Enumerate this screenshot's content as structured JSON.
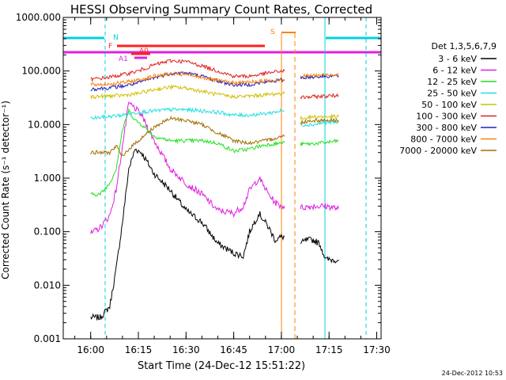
{
  "chart_data": {
    "type": "line",
    "title": "HESSI Observing Summary Count Rates, Corrected",
    "xlabel": "Start Time (24-Dec-12 15:51:22)",
    "ylabel": "Corrected Count Rate (s⁻¹ detector⁻¹)",
    "y_scale": "log",
    "ylim": [
      0.001,
      1000
    ],
    "xlim": [
      "15:51:22",
      "17:31:22"
    ],
    "x_ticks": [
      "16:00",
      "16:15",
      "16:30",
      "16:45",
      "17:00",
      "17:15",
      "17:30"
    ],
    "y_ticks": [
      "1000.000",
      "100.000",
      "10.000",
      "1.000",
      "0.100",
      "0.010",
      "0.001"
    ],
    "legend_title": "Det 1,3,5,6,7,9",
    "legend_position": "right",
    "timestamp": "24-Dec-2012 10:53",
    "flags": {
      "N": {
        "label": "N",
        "color": "#00d0e0"
      },
      "F": {
        "label": "F",
        "color": "#ff2020"
      },
      "A0": {
        "label": "A0",
        "color": "#ff2020"
      },
      "A1": {
        "label": "A1",
        "color": "#e020e0"
      },
      "S": {
        "label": "S",
        "color": "#ff8000"
      }
    },
    "series": [
      {
        "name": "3 - 6 keV",
        "color": "#000000",
        "points": [
          [
            "16:00",
            0.0025
          ],
          [
            "16:03",
            0.0025
          ],
          [
            "16:06",
            0.004
          ],
          [
            "16:08",
            0.02
          ],
          [
            "16:10",
            0.15
          ],
          [
            "16:12",
            1.5
          ],
          [
            "16:14",
            3.5
          ],
          [
            "16:16",
            3.0
          ],
          [
            "16:20",
            1.2
          ],
          [
            "16:25",
            0.6
          ],
          [
            "16:30",
            0.25
          ],
          [
            "16:35",
            0.15
          ],
          [
            "16:40",
            0.06
          ],
          [
            "16:45",
            0.04
          ],
          [
            "16:48",
            0.035
          ],
          [
            "16:50",
            0.1
          ],
          [
            "16:53",
            0.22
          ],
          [
            "16:56",
            0.12
          ],
          [
            "16:58",
            0.07
          ],
          [
            "17:00",
            0.08
          ],
          [
            "17:01",
            0.08
          ]
        ],
        "points_b": [
          [
            "17:06",
            0.06
          ],
          [
            "17:08",
            0.07
          ],
          [
            "17:10",
            0.07
          ],
          [
            "17:12",
            0.06
          ],
          [
            "17:14",
            0.03
          ],
          [
            "17:16",
            0.03
          ],
          [
            "17:18",
            0.03
          ]
        ]
      },
      {
        "name": "6 - 12 keV",
        "color": "#e020e0",
        "points": [
          [
            "16:00",
            0.09
          ],
          [
            "16:03",
            0.12
          ],
          [
            "16:06",
            0.2
          ],
          [
            "16:08",
            0.6
          ],
          [
            "16:10",
            4
          ],
          [
            "16:12",
            25
          ],
          [
            "16:14",
            20
          ],
          [
            "16:16",
            15
          ],
          [
            "16:20",
            5
          ],
          [
            "16:25",
            1.5
          ],
          [
            "16:30",
            0.8
          ],
          [
            "16:35",
            0.5
          ],
          [
            "16:40",
            0.25
          ],
          [
            "16:45",
            0.22
          ],
          [
            "16:48",
            0.3
          ],
          [
            "16:50",
            0.6
          ],
          [
            "16:53",
            1.0
          ],
          [
            "16:56",
            0.5
          ],
          [
            "16:58",
            0.35
          ],
          [
            "17:00",
            0.3
          ],
          [
            "17:01",
            0.3
          ]
        ],
        "points_b": [
          [
            "17:06",
            0.28
          ],
          [
            "17:10",
            0.3
          ],
          [
            "17:14",
            0.3
          ],
          [
            "17:18",
            0.27
          ]
        ]
      },
      {
        "name": "12 - 25 keV",
        "color": "#20e020",
        "points": [
          [
            "16:00",
            0.5
          ],
          [
            "16:03",
            0.5
          ],
          [
            "16:06",
            0.8
          ],
          [
            "16:08",
            1.5
          ],
          [
            "16:10",
            8
          ],
          [
            "16:12",
            18
          ],
          [
            "16:14",
            12
          ],
          [
            "16:16",
            10
          ],
          [
            "16:20",
            6
          ],
          [
            "16:25",
            5
          ],
          [
            "16:30",
            5
          ],
          [
            "16:35",
            5
          ],
          [
            "16:40",
            4.5
          ],
          [
            "16:45",
            3.2
          ],
          [
            "16:50",
            3.5
          ],
          [
            "16:55",
            4.2
          ],
          [
            "17:00",
            4.5
          ],
          [
            "17:01",
            4.6
          ]
        ],
        "points_b": [
          [
            "17:06",
            4.3
          ],
          [
            "17:10",
            4.4
          ],
          [
            "17:14",
            4.6
          ],
          [
            "17:18",
            5.0
          ]
        ]
      },
      {
        "name": "25 - 50 keV",
        "color": "#20e0e0",
        "points": [
          [
            "16:00",
            13
          ],
          [
            "16:05",
            14
          ],
          [
            "16:10",
            15
          ],
          [
            "16:15",
            17
          ],
          [
            "16:20",
            18
          ],
          [
            "16:25",
            19
          ],
          [
            "16:30",
            19
          ],
          [
            "16:35",
            18
          ],
          [
            "16:40",
            17
          ],
          [
            "16:45",
            15
          ],
          [
            "16:50",
            15
          ],
          [
            "16:55",
            16
          ],
          [
            "17:00",
            18
          ],
          [
            "17:01",
            18
          ]
        ],
        "points_b": [
          [
            "17:06",
            10
          ],
          [
            "17:10",
            10
          ],
          [
            "17:14",
            11
          ],
          [
            "17:18",
            11
          ]
        ]
      },
      {
        "name": "50 - 100 keV",
        "color": "#d0c000",
        "points": [
          [
            "16:00",
            33
          ],
          [
            "16:05",
            34
          ],
          [
            "16:10",
            35
          ],
          [
            "16:15",
            38
          ],
          [
            "16:20",
            45
          ],
          [
            "16:25",
            50
          ],
          [
            "16:30",
            48
          ],
          [
            "16:35",
            42
          ],
          [
            "16:40",
            36
          ],
          [
            "16:45",
            33
          ],
          [
            "16:50",
            34
          ],
          [
            "16:55",
            36
          ],
          [
            "17:00",
            38
          ],
          [
            "17:01",
            38
          ]
        ],
        "points_b": [
          [
            "17:06",
            13
          ],
          [
            "17:10",
            14
          ],
          [
            "17:14",
            14
          ],
          [
            "17:18",
            14
          ]
        ]
      },
      {
        "name": "100 - 300 keV",
        "color": "#e02020",
        "points": [
          [
            "16:00",
            70
          ],
          [
            "16:05",
            75
          ],
          [
            "16:10",
            85
          ],
          [
            "16:15",
            100
          ],
          [
            "16:20",
            130
          ],
          [
            "16:25",
            155
          ],
          [
            "16:30",
            150
          ],
          [
            "16:35",
            125
          ],
          [
            "16:40",
            100
          ],
          [
            "16:45",
            80
          ],
          [
            "16:50",
            80
          ],
          [
            "16:55",
            90
          ],
          [
            "17:00",
            100
          ],
          [
            "17:01",
            100
          ]
        ],
        "points_b": [
          [
            "17:06",
            32
          ],
          [
            "17:10",
            33
          ],
          [
            "17:14",
            34
          ],
          [
            "17:18",
            35
          ]
        ]
      },
      {
        "name": "300 - 800 keV",
        "color": "#2020c0",
        "points": [
          [
            "16:00",
            46
          ],
          [
            "16:05",
            48
          ],
          [
            "16:10",
            52
          ],
          [
            "16:15",
            60
          ],
          [
            "16:20",
            75
          ],
          [
            "16:25",
            90
          ],
          [
            "16:30",
            92
          ],
          [
            "16:35",
            80
          ],
          [
            "16:40",
            65
          ],
          [
            "16:45",
            55
          ],
          [
            "16:50",
            56
          ],
          [
            "16:55",
            62
          ],
          [
            "17:00",
            68
          ],
          [
            "17:01",
            68
          ]
        ],
        "points_b": [
          [
            "17:06",
            75
          ],
          [
            "17:10",
            78
          ],
          [
            "17:14",
            80
          ],
          [
            "17:18",
            82
          ]
        ]
      },
      {
        "name": "800 - 7000 keV",
        "color": "#ff8000",
        "points": [
          [
            "16:00",
            55
          ],
          [
            "16:05",
            57
          ],
          [
            "16:10",
            60
          ],
          [
            "16:15",
            68
          ],
          [
            "16:20",
            80
          ],
          [
            "16:25",
            88
          ],
          [
            "16:30",
            86
          ],
          [
            "16:35",
            76
          ],
          [
            "16:40",
            66
          ],
          [
            "16:45",
            60
          ],
          [
            "16:50",
            62
          ],
          [
            "16:55",
            66
          ],
          [
            "17:00",
            70
          ],
          [
            "17:01",
            70
          ]
        ],
        "points_b": [
          [
            "17:06",
            80
          ],
          [
            "17:10",
            82
          ],
          [
            "17:14",
            85
          ],
          [
            "17:18",
            86
          ]
        ]
      },
      {
        "name": "7000 - 20000 keV",
        "color": "#a07000",
        "points": [
          [
            "16:00",
            3
          ],
          [
            "16:03",
            3
          ],
          [
            "16:06",
            3
          ],
          [
            "16:08",
            4
          ],
          [
            "16:10",
            2.5
          ],
          [
            "16:12",
            3.5
          ],
          [
            "16:15",
            5
          ],
          [
            "16:20",
            9
          ],
          [
            "16:25",
            13
          ],
          [
            "16:30",
            12
          ],
          [
            "16:35",
            10
          ],
          [
            "16:40",
            7
          ],
          [
            "16:45",
            5
          ],
          [
            "16:50",
            4.5
          ],
          [
            "16:55",
            5
          ],
          [
            "17:00",
            6
          ],
          [
            "17:01",
            6
          ]
        ],
        "points_b": [
          [
            "17:06",
            11
          ],
          [
            "17:10",
            12
          ],
          [
            "17:14",
            12
          ],
          [
            "17:18",
            12
          ]
        ]
      }
    ]
  }
}
